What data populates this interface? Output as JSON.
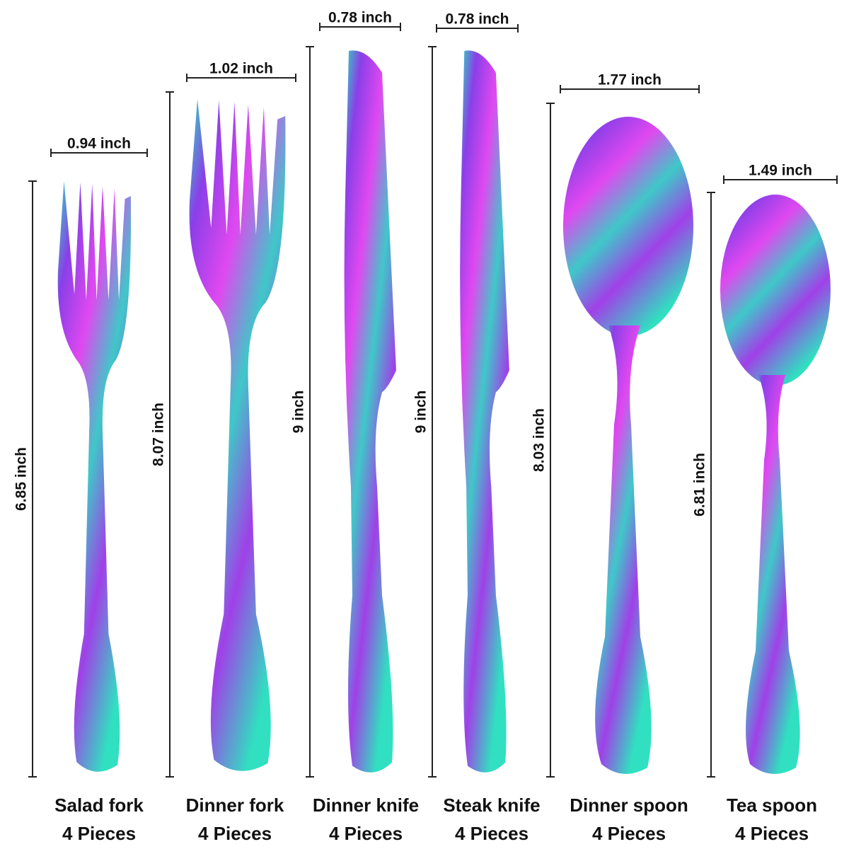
{
  "items": [
    {
      "width": "0.94 inch",
      "length": "6.85 inch",
      "name": "Salad fork",
      "count": "4 Pieces"
    },
    {
      "width": "1.02 inch",
      "length": "8.07 inch",
      "name": "Dinner fork",
      "count": "4 Pieces"
    },
    {
      "width": "0.78 inch",
      "length": "9 inch",
      "name": "Dinner knife",
      "count": "4 Pieces"
    },
    {
      "width": "0.78 inch",
      "length": "9 inch",
      "name": "Steak knife",
      "count": "4 Pieces"
    },
    {
      "width": "1.77 inch",
      "length": "8.03 inch",
      "name": "Dinner spoon",
      "count": "4 Pieces"
    },
    {
      "width": "1.49 inch",
      "length": "6.81 inch",
      "name": "Tea spoon",
      "count": "4 Pieces"
    }
  ]
}
